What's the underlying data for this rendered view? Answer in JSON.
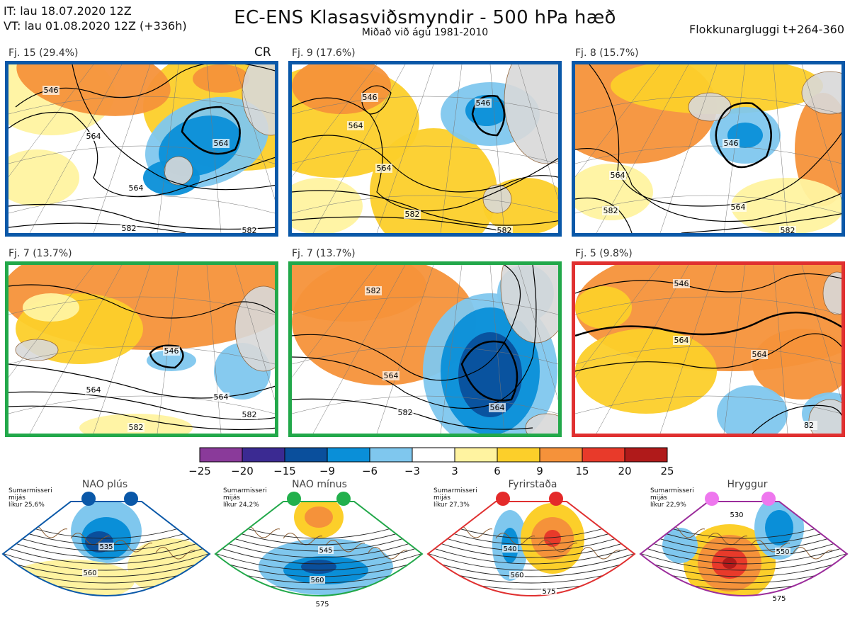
{
  "header": {
    "init_time": "IT: lau 18.07.2020 12Z",
    "valid_time": "VT: lau 01.08.2020 12Z  (+336h)",
    "title": "EC-ENS Klasasviðsmyndir - 500 hPa hæð",
    "subtitle": "Miðað við ágú 1981-2010",
    "window": "Flokkunargluggi t+264-360"
  },
  "corner_mark": "CR",
  "colors": {
    "border_blue": "#0a58a8",
    "border_green": "#22a84a",
    "border_red": "#e03030",
    "border_purple": "#9b2c9b",
    "dot_blue": "#0a58a8",
    "dot_green": "#22b04c",
    "dot_red": "#e42a2a",
    "dot_pink": "#ee77ee",
    "land": "#d9d9d9",
    "coast": "#8a5a2e"
  },
  "clusters": [
    {
      "label": "Fj. 15 (29.4%)",
      "border": "blue",
      "contours": [
        "564",
        "564",
        "546",
        "564",
        "582",
        "582"
      ]
    },
    {
      "label": "Fj. 9 (17.6%)",
      "border": "blue",
      "contours": [
        "546",
        "564",
        "546",
        "582",
        "564",
        "582"
      ]
    },
    {
      "label": "Fj. 8 (15.7%)",
      "border": "blue",
      "contours": [
        "564",
        "546",
        "564",
        "582",
        "582"
      ]
    },
    {
      "label": "Fj. 7 (13.7%)",
      "border": "green",
      "contours": [
        "546",
        "564",
        "582",
        "582",
        "564"
      ]
    },
    {
      "label": "Fj. 7 (13.7%)",
      "border": "green",
      "contours": [
        "564",
        "564",
        "582",
        "582"
      ]
    },
    {
      "label": "Fj. 5 (9.8%)",
      "border": "red",
      "contours": [
        "546",
        "564",
        "564",
        "82"
      ]
    }
  ],
  "colorbar": {
    "ticks": [
      "−25",
      "−20",
      "−15",
      "−9",
      "−6",
      "−3",
      "3",
      "6",
      "9",
      "15",
      "20",
      "25"
    ],
    "colors": [
      "#8a3a9a",
      "#3b2a92",
      "#0a4f9c",
      "#0a8fd8",
      "#7fc7ee",
      "#ffffff",
      "#fff3a0",
      "#fccf2a",
      "#f5923a",
      "#e83a2a",
      "#b01a1a"
    ]
  },
  "regimes": [
    {
      "name": "NAO plús",
      "note_l1": "Sumarmisseri",
      "note_l2": "mijás",
      "note_l3": "líkur 25,6%",
      "color": "blue",
      "contours": [
        "535",
        "560"
      ]
    },
    {
      "name": "NAO mínus",
      "note_l1": "Sumarmisseri",
      "note_l2": "mijás",
      "note_l3": "líkur 24,2%",
      "color": "green",
      "contours": [
        "545",
        "560",
        "575"
      ]
    },
    {
      "name": "Fyrirstaða",
      "note_l1": "Sumarmisseri",
      "note_l2": "mijás",
      "note_l3": "líkur 27,3%",
      "color": "red",
      "contours": [
        "540",
        "560",
        "575"
      ]
    },
    {
      "name": "Hryggur",
      "note_l1": "Sumarmisseri",
      "note_l2": "mijás",
      "note_l3": "líkur 22,9%",
      "color": "purple",
      "contours": [
        "530",
        "550",
        "575"
      ]
    }
  ]
}
